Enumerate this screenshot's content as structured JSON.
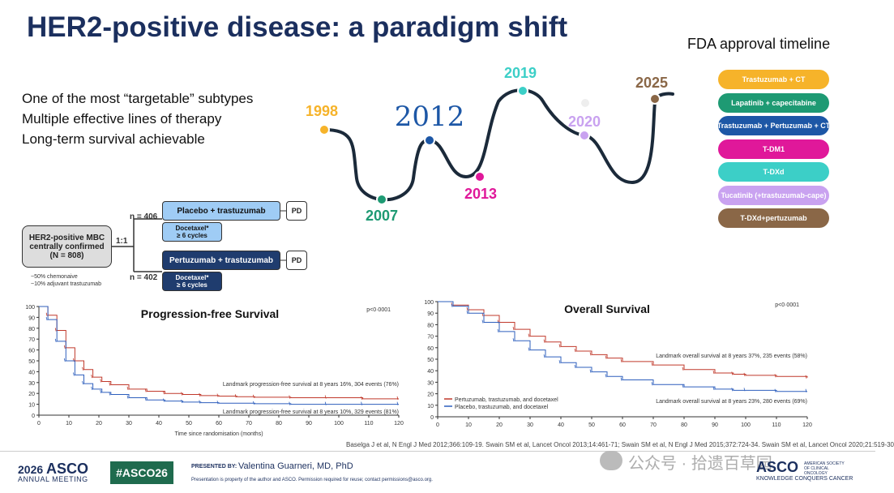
{
  "title": "HER2-positive disease: a paradigm shift",
  "fda": {
    "title": "FDA approval timeline",
    "pills": [
      {
        "label": "Trastuzumab + CT",
        "color": "#f6b32a"
      },
      {
        "label": "Lapatinib + capecitabine",
        "color": "#1e9a73"
      },
      {
        "label": "Trastuzumab + Pertuzumab + CT",
        "color": "#1d57a6"
      },
      {
        "label": "T-DM1",
        "color": "#e0189a"
      },
      {
        "label": "T-DXd",
        "color": "#3ccfc7"
      },
      {
        "label": "Tucatinib (+trastuzumab-cape)",
        "color": "#c9a2f0"
      },
      {
        "label": "T-DXd+pertuzumab",
        "color": "#8a6747"
      }
    ],
    "years": [
      {
        "year": "1998",
        "color": "#f6b32a"
      },
      {
        "year": "2007",
        "color": "#1e9a73"
      },
      {
        "year": "2012",
        "color": "#1d57a6"
      },
      {
        "year": "2013",
        "color": "#e0189a"
      },
      {
        "year": "2019",
        "color": "#3ccfc7"
      },
      {
        "year": "2020",
        "color": "#c9a2f0"
      },
      {
        "year": "2025",
        "color": "#8a6747"
      }
    ]
  },
  "bullets": [
    "One of the most “targetable” subtypes",
    "Multiple effective lines of therapy",
    "Long-term survival achievable"
  ],
  "trial": {
    "population": "HER2-positive MBC centrally confirmed (N = 808)",
    "ratio": "1:1",
    "n_top": "n = 406",
    "n_bottom": "n = 402",
    "arm_top": "Placebo + trastuzumab",
    "arm_bottom": "Pertuzumab + trastuzumab",
    "pd": "PD",
    "docetaxel": "Docetaxel*",
    "cycles": "≥ 6 cycles",
    "note1": "~50% chemonaive",
    "note2": "~10% adjuvant trastuzumab"
  },
  "chart_data": [
    {
      "type": "line",
      "title": "Progression-free Survival",
      "xlabel": "Time since randomisation (months)",
      "ylabel": "",
      "xlim": [
        0,
        120
      ],
      "ylim": [
        0,
        100
      ],
      "x_ticks": [
        "0",
        "10",
        "20",
        "30",
        "40",
        "50",
        "60",
        "70",
        "80",
        "90",
        "100",
        "110",
        "120"
      ],
      "y_ticks": [
        "0",
        "10",
        "20",
        "30",
        "40",
        "50",
        "60",
        "70",
        "80",
        "90",
        "100"
      ],
      "pvalue": "p<0·0001",
      "annotations": [
        "Landmark progression-free survival at 8 years 16%, 304 events (76%)",
        "Landmark progression-free survival at 8 years 10%, 329 events (81%)"
      ],
      "series": [
        {
          "color": "#c0392b",
          "x": [
            0,
            3,
            6,
            9,
            12,
            15,
            18,
            21,
            24,
            30,
            36,
            42,
            48,
            54,
            60,
            66,
            72,
            84,
            96,
            108,
            120
          ],
          "y": [
            100,
            92,
            78,
            62,
            50,
            42,
            35,
            31,
            28,
            24,
            22,
            20,
            19,
            18,
            17.5,
            17,
            16.5,
            16,
            16,
            15,
            15
          ]
        },
        {
          "color": "#2e5fbd",
          "x": [
            0,
            3,
            6,
            9,
            12,
            15,
            18,
            21,
            24,
            30,
            36,
            42,
            48,
            54,
            60,
            72,
            84,
            96,
            108,
            120
          ],
          "y": [
            100,
            88,
            68,
            50,
            37,
            29,
            24,
            21,
            19,
            16,
            14,
            13,
            12,
            11.5,
            11,
            10.5,
            10,
            10,
            10,
            10
          ]
        }
      ]
    },
    {
      "type": "line",
      "title": "Overall Survival",
      "xlabel": "",
      "ylabel": "",
      "xlim": [
        0,
        120
      ],
      "ylim": [
        0,
        100
      ],
      "x_ticks": [
        "0",
        "10",
        "20",
        "30",
        "40",
        "50",
        "60",
        "70",
        "80",
        "90",
        "100",
        "110",
        "120"
      ],
      "y_ticks": [
        "0",
        "10",
        "20",
        "30",
        "40",
        "50",
        "60",
        "70",
        "80",
        "90",
        "100"
      ],
      "pvalue": "p<0·0001",
      "annotations": [
        "Landmark overall survival at 8 years 37%, 235 events (58%)",
        "Landmark overall survival at 8 years 23%, 280 events (69%)"
      ],
      "legend": [
        "Pertuzumab, trastuzumab, and docetaxel",
        "Placebo, trastuzumab, and docetaxel"
      ],
      "series": [
        {
          "name": "Pertuzumab, trastuzumab, and docetaxel",
          "color": "#c0392b",
          "x": [
            0,
            5,
            10,
            15,
            20,
            25,
            30,
            35,
            40,
            45,
            50,
            55,
            60,
            70,
            80,
            90,
            96,
            100,
            110,
            120
          ],
          "y": [
            100,
            97,
            93,
            88,
            82,
            76,
            70,
            65,
            61,
            57,
            54,
            51,
            48,
            45,
            41,
            38,
            37,
            36,
            35,
            34
          ]
        },
        {
          "name": "Placebo, trastuzumab, and docetaxel",
          "color": "#2e5fbd",
          "x": [
            0,
            5,
            10,
            15,
            20,
            25,
            30,
            35,
            40,
            45,
            50,
            55,
            60,
            70,
            80,
            90,
            96,
            100,
            110,
            120
          ],
          "y": [
            100,
            96,
            90,
            82,
            74,
            66,
            58,
            52,
            47,
            43,
            39,
            35,
            32,
            28,
            26,
            24,
            23,
            23,
            22,
            22
          ]
        }
      ]
    }
  ],
  "citation": "Baselga J et al, N Engl J Med 2012;366:109-19. Swain SM et al, Lancet Oncol 2013;14:461-71; Swain SM et al, N Engl J Med 2015;372:724-34. Swain SM et al, Lancet Oncol 2020;21:519-30",
  "footer": {
    "meeting_year": "2026",
    "meeting_name": "ASCO",
    "meeting_sub": "ANNUAL MEETING",
    "hashtag": "#ASCO26",
    "presented_by": "PRESENTED BY:",
    "presenter": "Valentina Guarneri, MD, PhD",
    "disclaimer": "Presentation is property of the author and ASCO. Permission required for reuse; contact permissions@asco.org.",
    "watermark": "公众号 · 拾遗百草园",
    "asco_logo": "ASCO",
    "asco_society": "AMERICAN SOCIETY OF CLINICAL ONCOLOGY",
    "asco_tagline": "KNOWLEDGE CONQUERS CANCER"
  }
}
